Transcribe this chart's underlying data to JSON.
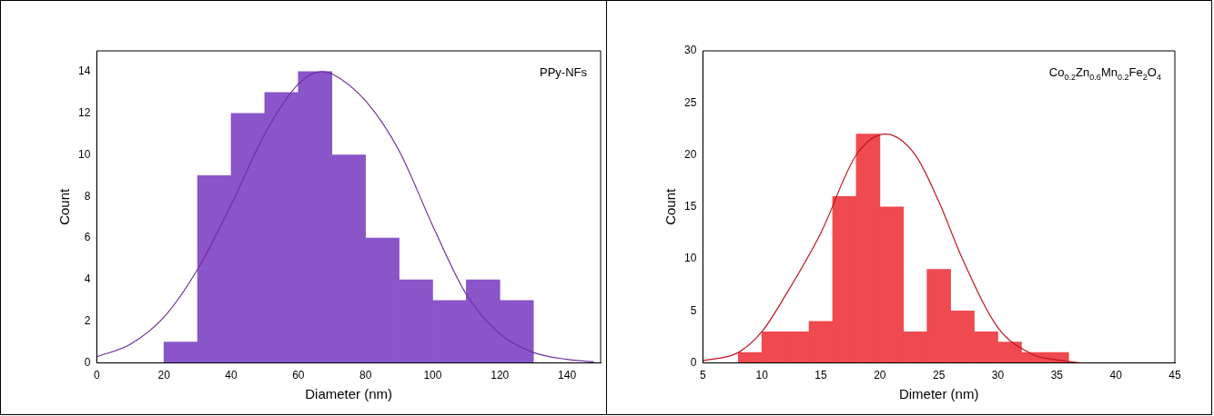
{
  "chart_data": [
    {
      "type": "histogram",
      "xlabel": "Diameter (nm)",
      "ylabel": "Count",
      "annotations": [
        "PPy-NFs"
      ],
      "bins": [
        20,
        30,
        40,
        50,
        60,
        70,
        80,
        90,
        100,
        110,
        120,
        130
      ],
      "values": [
        1,
        9,
        12,
        13,
        14,
        10,
        6,
        4,
        3,
        4,
        3
      ],
      "color": "#8a55c8",
      "xlim": [
        0,
        150
      ],
      "xticks": [
        0,
        20,
        40,
        60,
        80,
        100,
        120,
        140
      ],
      "ylim": [
        0,
        15
      ],
      "yticks": [
        0,
        2,
        4,
        6,
        8,
        10,
        12,
        14
      ],
      "grid": false,
      "legend": false,
      "series": [
        {
          "type": "line",
          "color": "#7030a0",
          "x": [
            0,
            10,
            20,
            30,
            40,
            50,
            60,
            67,
            70,
            80,
            90,
            100,
            110,
            120,
            130,
            140,
            148
          ],
          "values": [
            0.3,
            0.9,
            2.2,
            4.5,
            7.6,
            11,
            13.4,
            14,
            13.9,
            12.6,
            10.2,
            6.6,
            3.3,
            1.4,
            0.5,
            0.17,
            0.05
          ]
        }
      ]
    },
    {
      "type": "histogram",
      "xlabel": "Dimeter (nm)",
      "ylabel": "Count",
      "annotations": [
        "Co$_{0.2}$Zn$_{0.6}$Mn$_{0.2}$Fe$_{2}$O$_{4}$"
      ],
      "bins": [
        8,
        10,
        12,
        14,
        16,
        18,
        20,
        22,
        24,
        26,
        28,
        30,
        32,
        34,
        36
      ],
      "values": [
        1,
        3,
        3,
        4,
        16,
        22,
        15,
        3,
        9,
        5,
        3,
        2,
        1,
        1
      ],
      "color": "#ee4a4f",
      "xlim": [
        5,
        45
      ],
      "xticks": [
        5,
        10,
        15,
        20,
        25,
        30,
        35,
        40,
        45
      ],
      "ylim": [
        0,
        30
      ],
      "yticks": [
        0,
        5,
        10,
        15,
        20,
        25,
        30
      ],
      "grid": false,
      "legend": false,
      "series": [
        {
          "type": "line",
          "color": "#c0151f",
          "x": [
            5,
            8,
            10,
            12,
            15,
            18,
            20.5,
            23,
            25,
            27,
            30,
            33,
            35,
            37
          ],
          "values": [
            0.2,
            1,
            3,
            6.5,
            12.5,
            20,
            22,
            20,
            15.5,
            10,
            3.4,
            0.8,
            0.3,
            0
          ]
        }
      ]
    }
  ]
}
